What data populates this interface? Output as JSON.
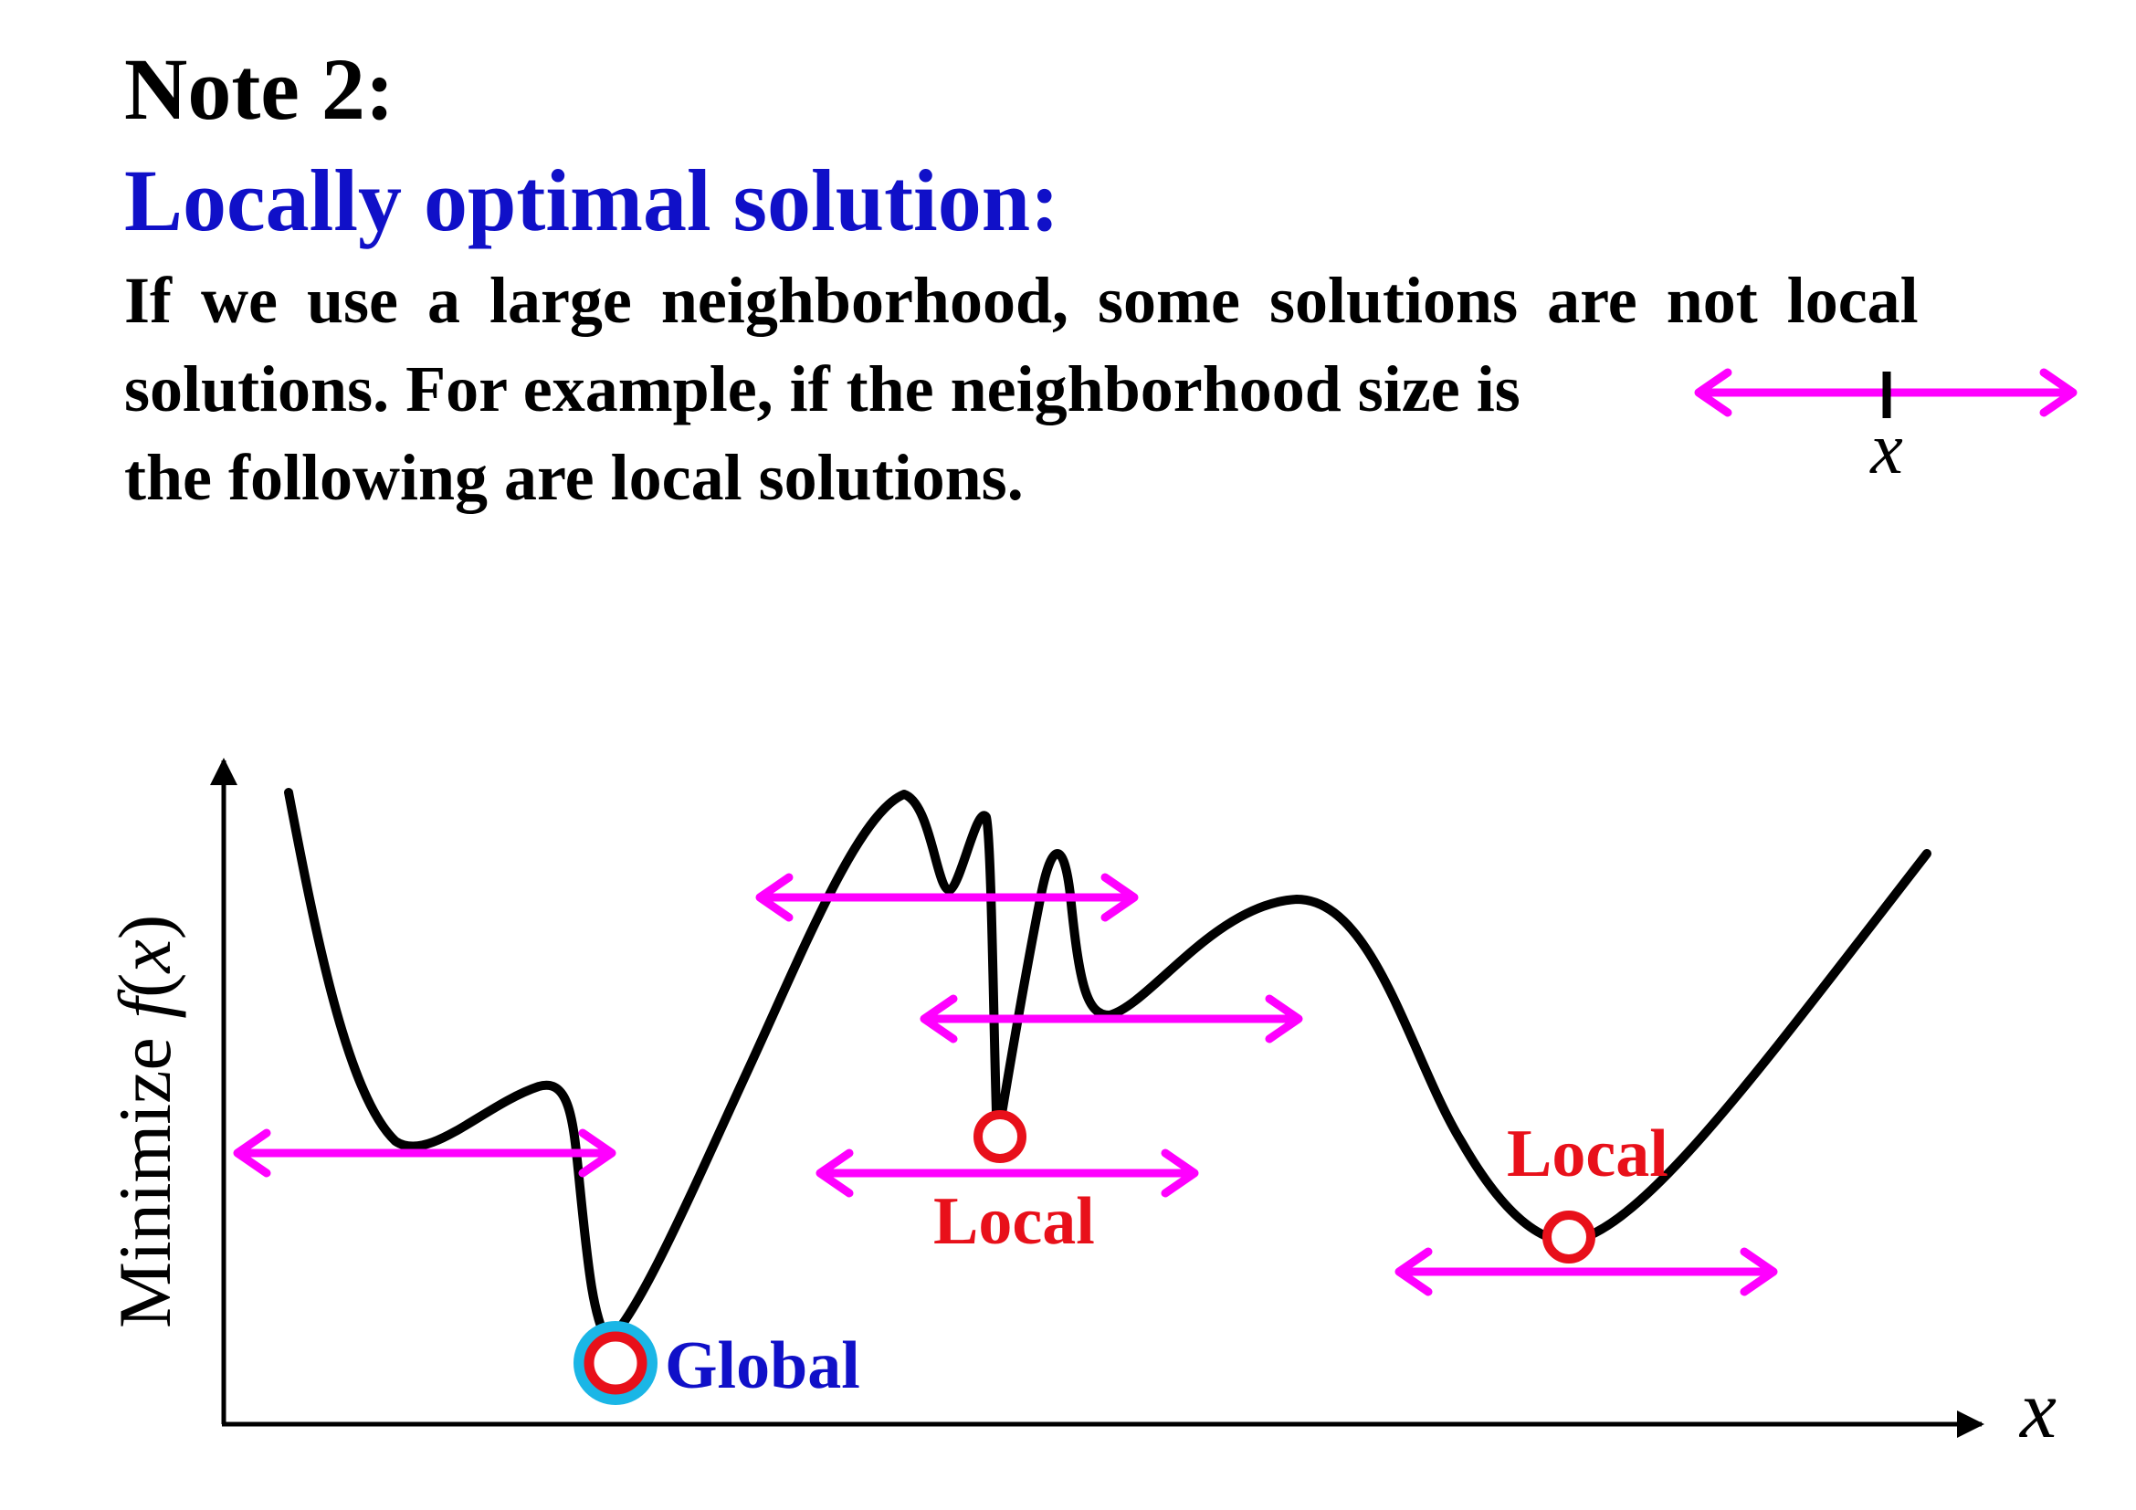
{
  "header": {
    "note": "Note 2:",
    "subtitle": "Locally optimal solution:"
  },
  "paragraph": {
    "line1": "If we use a large neighborhood, some solutions are not local",
    "line2": "solutions. For example, if the neighborhood size is",
    "line3": "the following are local solutions."
  },
  "neighborhood_legend": {
    "center_label": "x"
  },
  "diagram": {
    "x_axis_label": "x",
    "y_axis_label": "Minimize f(x)",
    "y_axis_label_parts": {
      "prefix": "Minimize ",
      "func": "f",
      "open": "(",
      "var": "x",
      "close": ")"
    },
    "global_label": "Global",
    "local_label_middle": "Local",
    "local_label_right": "Local"
  },
  "colors": {
    "title_blue": "#1010c8",
    "arrow_magenta": "#ff00ff",
    "marker_red": "#e8101a",
    "global_halo": "#1ab6e6",
    "curve_black": "#000000"
  }
}
